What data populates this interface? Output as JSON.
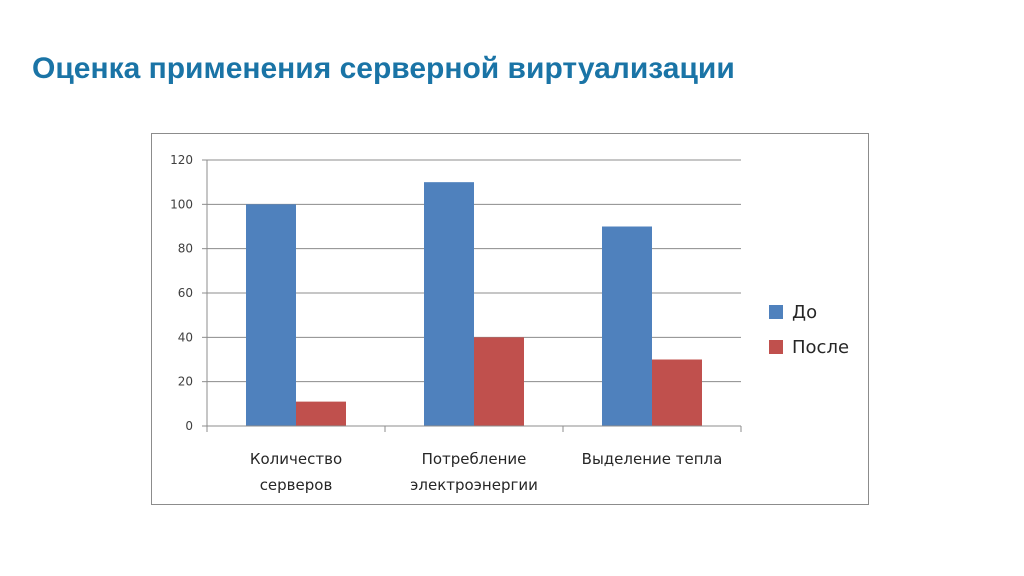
{
  "slide": {
    "title": "Оценка применения серверной виртуализации"
  },
  "chart_data": {
    "type": "bar",
    "categories": [
      [
        "Количество",
        "серверов"
      ],
      [
        "Потребление",
        "электроэнергии"
      ],
      [
        "Выделение тепла"
      ]
    ],
    "series": [
      {
        "name": "До",
        "values": [
          100,
          110,
          90
        ],
        "color": "#4f81bd"
      },
      {
        "name": "После",
        "values": [
          11,
          40,
          30
        ],
        "color": "#c0504d"
      }
    ],
    "y_ticks": [
      0,
      20,
      40,
      60,
      80,
      100,
      120
    ],
    "ylim": [
      0,
      120
    ],
    "grid": true,
    "legend_position": "right"
  }
}
